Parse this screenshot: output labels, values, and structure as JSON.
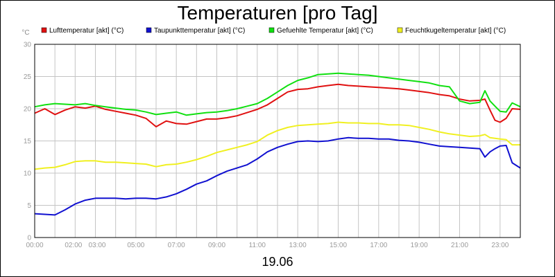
{
  "chart_data": {
    "type": "line",
    "title": "Temperaturen [pro Tag]",
    "ylabel": "°C",
    "xlabel": "19.06",
    "ylim": [
      0,
      30
    ],
    "xlim": [
      0,
      24
    ],
    "yticks": [
      0,
      5,
      10,
      15,
      20,
      25,
      30
    ],
    "xticks": [
      {
        "x": 0,
        "label": "00:00"
      },
      {
        "x": 2,
        "label": "02:00"
      },
      {
        "x": 3,
        "label": "03:00"
      },
      {
        "x": 5,
        "label": "05:00"
      },
      {
        "x": 7,
        "label": "07:00"
      },
      {
        "x": 9,
        "label": "09:00"
      },
      {
        "x": 11,
        "label": "11:00"
      },
      {
        "x": 13,
        "label": "13:00"
      },
      {
        "x": 15,
        "label": "15:00"
      },
      {
        "x": 17,
        "label": "17:00"
      },
      {
        "x": 19,
        "label": "19:00"
      },
      {
        "x": 21,
        "label": "21:00"
      },
      {
        "x": 23,
        "label": "23:00"
      }
    ],
    "grid": true,
    "series": [
      {
        "name": "Lufttemperatur [akt] (°C)",
        "color": "#e01010",
        "x": [
          0,
          0.5,
          1,
          1.5,
          2,
          2.5,
          3,
          3.5,
          4,
          4.5,
          5,
          5.5,
          6,
          6.5,
          7,
          7.5,
          8,
          8.5,
          9,
          9.5,
          10,
          10.5,
          11,
          11.5,
          12,
          12.5,
          13,
          13.5,
          14,
          14.5,
          15,
          15.5,
          16,
          16.5,
          17,
          17.5,
          18,
          18.5,
          19,
          19.5,
          20,
          20.5,
          21,
          21.5,
          22,
          22.25,
          22.5,
          22.75,
          23,
          23.3,
          23.6,
          24
        ],
        "values": [
          19.3,
          20,
          19.1,
          19.8,
          20.3,
          20.1,
          20.4,
          19.9,
          19.6,
          19.3,
          19,
          18.5,
          17.2,
          18.1,
          17.7,
          17.6,
          18,
          18.4,
          18.4,
          18.6,
          18.9,
          19.4,
          19.9,
          20.6,
          21.6,
          22.6,
          23,
          23.1,
          23.4,
          23.6,
          23.8,
          23.6,
          23.5,
          23.4,
          23.3,
          23.2,
          23.1,
          22.9,
          22.7,
          22.5,
          22.2,
          22,
          21.5,
          21.2,
          21.3,
          21.5,
          19.8,
          18.2,
          17.9,
          18.5,
          20,
          19.9
        ]
      },
      {
        "name": "Taupunkttemperatur [akt] (°C)",
        "color": "#1010d0",
        "x": [
          0,
          0.5,
          1,
          1.5,
          2,
          2.5,
          3,
          3.5,
          4,
          4.5,
          5,
          5.5,
          6,
          6.5,
          7,
          7.5,
          8,
          8.5,
          9,
          9.5,
          10,
          10.5,
          11,
          11.5,
          12,
          12.5,
          13,
          13.5,
          14,
          14.5,
          15,
          15.5,
          16,
          16.5,
          17,
          17.5,
          18,
          18.5,
          19,
          19.5,
          20,
          20.5,
          21,
          21.5,
          22,
          22.25,
          22.5,
          22.75,
          23,
          23.3,
          23.6,
          24
        ],
        "values": [
          3.7,
          3.6,
          3.5,
          4.3,
          5.2,
          5.8,
          6.1,
          6.1,
          6.1,
          6,
          6.1,
          6.1,
          6,
          6.3,
          6.8,
          7.5,
          8.3,
          8.8,
          9.6,
          10.3,
          10.8,
          11.3,
          12.2,
          13.3,
          14,
          14.5,
          14.9,
          15,
          14.9,
          15,
          15.3,
          15.5,
          15.4,
          15.4,
          15.3,
          15.3,
          15.1,
          15,
          14.8,
          14.5,
          14.2,
          14.1,
          14,
          13.9,
          13.8,
          12.5,
          13.3,
          13.8,
          14.2,
          14.3,
          11.6,
          10.8
        ]
      },
      {
        "name": "Gefuehlte Temperatur [akt] (°C)",
        "color": "#10e010",
        "x": [
          0,
          0.5,
          1,
          1.5,
          2,
          2.5,
          3,
          3.5,
          4,
          4.5,
          5,
          5.5,
          6,
          6.5,
          7,
          7.5,
          8,
          8.5,
          9,
          9.5,
          10,
          10.5,
          11,
          11.5,
          12,
          12.5,
          13,
          13.5,
          14,
          14.5,
          15,
          15.5,
          16,
          16.5,
          17,
          17.5,
          18,
          18.5,
          19,
          19.5,
          20,
          20.5,
          21,
          21.5,
          22,
          22.25,
          22.5,
          22.75,
          23,
          23.3,
          23.6,
          24
        ],
        "values": [
          20.3,
          20.6,
          20.8,
          20.7,
          20.6,
          20.8,
          20.5,
          20.3,
          20.1,
          19.9,
          19.8,
          19.5,
          19.1,
          19.3,
          19.5,
          19,
          19.2,
          19.4,
          19.5,
          19.7,
          20,
          20.4,
          20.8,
          21.6,
          22.6,
          23.6,
          24.4,
          24.8,
          25.3,
          25.4,
          25.5,
          25.4,
          25.3,
          25.2,
          25,
          24.8,
          24.6,
          24.4,
          24.2,
          24,
          23.6,
          23.4,
          21.2,
          20.8,
          21,
          22.8,
          21.2,
          20.4,
          19.6,
          19.5,
          20.9,
          20.3
        ]
      },
      {
        "name": "Feuchtkugeltemperatur [akt] (°C)",
        "color": "#f0f020",
        "x": [
          0,
          0.5,
          1,
          1.5,
          2,
          2.5,
          3,
          3.5,
          4,
          4.5,
          5,
          5.5,
          6,
          6.5,
          7,
          7.5,
          8,
          8.5,
          9,
          9.5,
          10,
          10.5,
          11,
          11.5,
          12,
          12.5,
          13,
          13.5,
          14,
          14.5,
          15,
          15.5,
          16,
          16.5,
          17,
          17.5,
          18,
          18.5,
          19,
          19.5,
          20,
          20.5,
          21,
          21.5,
          22,
          22.25,
          22.5,
          22.75,
          23,
          23.3,
          23.6,
          24
        ],
        "values": [
          10.6,
          10.8,
          10.9,
          11.3,
          11.8,
          11.9,
          11.9,
          11.7,
          11.7,
          11.6,
          11.5,
          11.4,
          11,
          11.3,
          11.4,
          11.7,
          12.1,
          12.6,
          13.2,
          13.6,
          14,
          14.4,
          14.9,
          15.9,
          16.6,
          17.1,
          17.4,
          17.5,
          17.6,
          17.7,
          17.9,
          17.8,
          17.8,
          17.7,
          17.7,
          17.5,
          17.5,
          17.4,
          17.1,
          16.8,
          16.4,
          16.1,
          15.9,
          15.7,
          15.8,
          16,
          15.5,
          15.4,
          15.3,
          15.2,
          14.4,
          14.4
        ]
      }
    ]
  }
}
